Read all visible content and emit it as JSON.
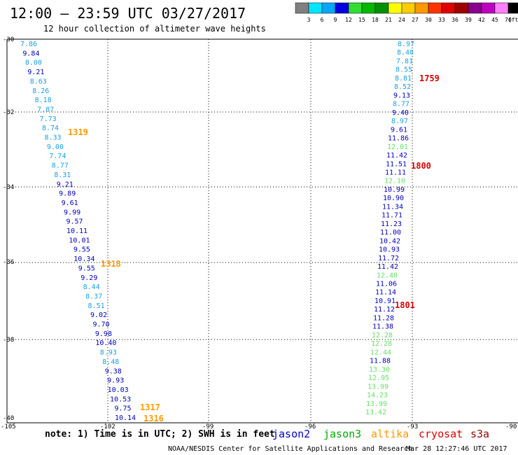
{
  "header": {
    "title": "12:00 — 23:59 UTC 03/27/2017",
    "subtitle": "12 hour collection of altimeter wave heights"
  },
  "colorbar": {
    "labels": [
      "3",
      "6",
      "9",
      "12",
      "15",
      "18",
      "21",
      "24",
      "27",
      "30",
      "33",
      "36",
      "39",
      "42",
      "45",
      "70",
      "(ft)"
    ],
    "colors": [
      "#808080",
      "#00e5ff",
      "#00a8ff",
      "#0000e0",
      "#33dd33",
      "#00b800",
      "#009000",
      "#ffff00",
      "#ffcc00",
      "#ff9900",
      "#ff3300",
      "#e00000",
      "#a00000",
      "#8b008b",
      "#c000c0",
      "#ff80ff",
      "#000000"
    ]
  },
  "axes": {
    "lon_labels": [
      "-105",
      "-102",
      "-99",
      "-96",
      "-93",
      "-90"
    ],
    "lat_labels": [
      "-30",
      "-32",
      "-34",
      "-36",
      "-38",
      "-40"
    ]
  },
  "track_west": {
    "values": [
      "7.86",
      "9.84",
      "8.00",
      "9.21",
      "8.63",
      "8.26",
      "8.18",
      "7.87",
      "7.73",
      "8.74",
      "8.33",
      "9.00",
      "7.74",
      "8.77",
      "8.31",
      "9.21",
      "9.89",
      "9.61",
      "9.99",
      "9.57",
      "10.11",
      "10.01",
      "9.55",
      "10.34",
      "9.55",
      "9.29",
      "8.44",
      "8.37",
      "8.51",
      "9.02",
      "9.70",
      "9.98",
      "10.40",
      "8.93",
      "8.48",
      "9.38",
      "9.93",
      "10.03",
      "10.53",
      "9.75",
      "10.14"
    ],
    "sat": [
      "j2c",
      "j2",
      "j2c",
      "j2",
      "j2c",
      "j2c",
      "j2c",
      "j2c",
      "j2c",
      "j2c",
      "j2c",
      "j2c",
      "j2c",
      "j2c",
      "j2c",
      "j2",
      "j2",
      "j2",
      "j2",
      "j2",
      "j2",
      "j2",
      "j2",
      "j2",
      "j2",
      "j2",
      "j2c",
      "j2c",
      "j2c",
      "j2",
      "j2",
      "j2",
      "j2",
      "j2c",
      "j2c",
      "j2",
      "j2",
      "j2",
      "j2",
      "j2",
      "j2"
    ]
  },
  "track_east": {
    "values": [
      "8.97",
      "8.40",
      "7.81",
      "8.55",
      "8.81",
      "8.52",
      "9.13",
      "8.77",
      "9.40",
      "8.97",
      "9.61",
      "11.86",
      "12.01",
      "11.42",
      "11.51",
      "11.11",
      "12.10",
      "10.99",
      "10.90",
      "11.34",
      "11.71",
      "11.23",
      "11.00",
      "10.42",
      "10.93",
      "11.72",
      "11.42",
      "12.40",
      "11.06",
      "11.14",
      "10.91",
      "11.12",
      "11.28",
      "11.38",
      "12.28",
      "12.28",
      "12.44",
      "11.88",
      "13.30",
      "12.95",
      "13.99",
      "14.23",
      "13.99",
      "13.42"
    ],
    "sat": [
      "j2c",
      "j2c",
      "j2c",
      "j2c",
      "j2c",
      "j2c",
      "j2",
      "j2c",
      "j2",
      "j2c",
      "j2",
      "j2",
      "j3",
      "j2",
      "j2",
      "j2",
      "j3",
      "j2",
      "j2",
      "j2",
      "j2",
      "j2",
      "j2",
      "j2",
      "j2",
      "j2",
      "j2",
      "j3",
      "j2",
      "j2",
      "j2",
      "j2",
      "j2",
      "j2",
      "j3",
      "j3",
      "j3",
      "j2",
      "j3",
      "j3",
      "j3",
      "j3",
      "j3",
      "j3"
    ]
  },
  "time_labels": [
    {
      "text": "1319",
      "sat": "altika"
    },
    {
      "text": "1318",
      "sat": "altika"
    },
    {
      "text": "1317",
      "sat": "altika"
    },
    {
      "text": "1316",
      "sat": "altika"
    },
    {
      "text": "1759",
      "sat": "cryosat"
    },
    {
      "text": "1800",
      "sat": "cryosat"
    },
    {
      "text": "1801",
      "sat": "cryosat"
    }
  ],
  "footer": {
    "note": "note:  1) Time is in UTC;  2) SWH is in feet",
    "satellites": [
      {
        "name": "jason2",
        "color": "#0000cc"
      },
      {
        "name": "jason3",
        "color": "#00aa00"
      },
      {
        "name": "altika",
        "color": "#ff9900"
      },
      {
        "name": "cryosat",
        "color": "#dd0000"
      },
      {
        "name": "s3a",
        "color": "#990000"
      }
    ],
    "credit": "NOAA/NESDIS Center for Satellite Applications and Research",
    "timestamp": "Mar 28 12:27:46 UTC 2017"
  },
  "colors": {
    "j2": "#0000bb",
    "j2c": "#1a9fe0",
    "j3": "#66e066",
    "altika": "#ff9900",
    "cryosat": "#dd0000",
    "grid": "#000000"
  }
}
